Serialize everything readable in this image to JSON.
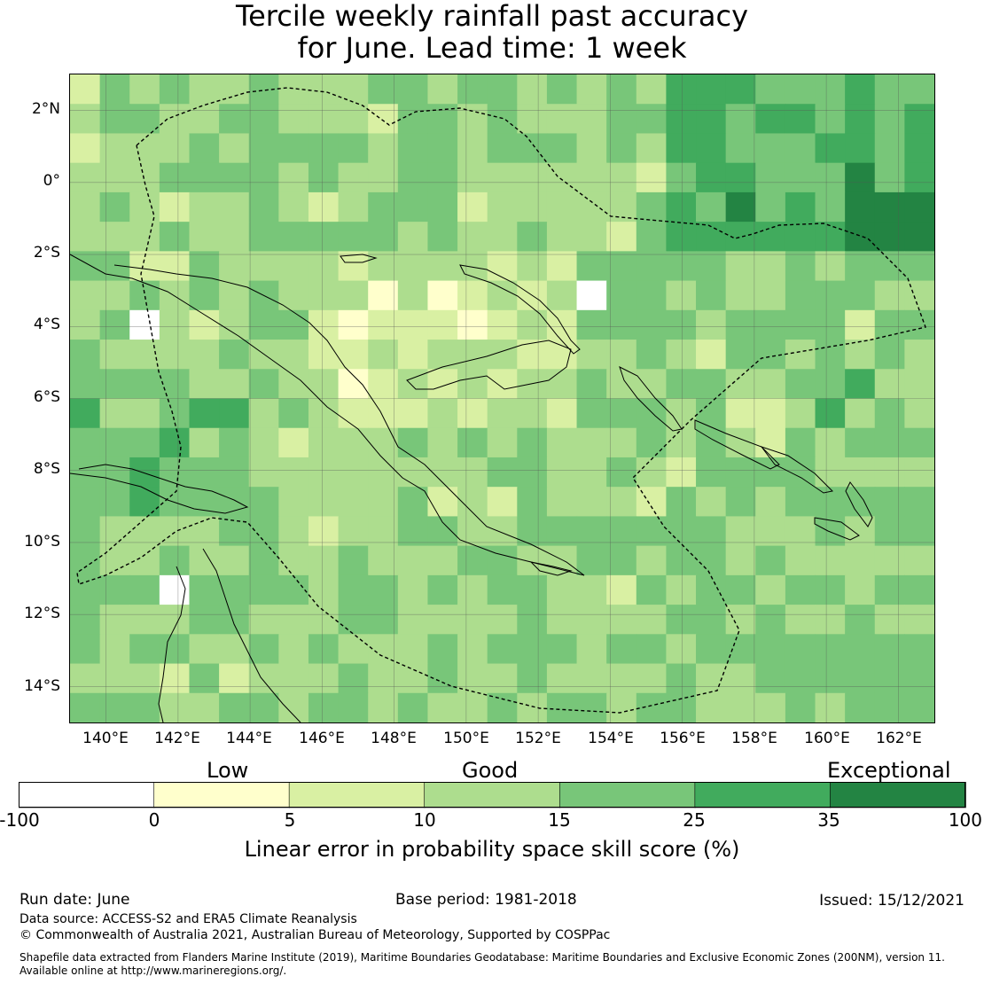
{
  "title_line1": "Tercile weekly rainfall past accuracy",
  "title_line2": "for June. Lead time: 1 week",
  "map": {
    "lon_ticks": [
      "140°E",
      "142°E",
      "144°E",
      "146°E",
      "148°E",
      "150°E",
      "152°E",
      "154°E",
      "156°E",
      "158°E",
      "160°E",
      "162°E"
    ],
    "lat_ticks": [
      "2°N",
      "0°",
      "2°S",
      "4°S",
      "6°S",
      "8°S",
      "10°S",
      "12°S",
      "14°S"
    ],
    "lon_range": [
      139,
      163
    ],
    "lat_range": [
      -15,
      3
    ]
  },
  "colorbar": {
    "category_low": "Low",
    "category_good": "Good",
    "category_exceptional": "Exceptional",
    "ticks": [
      "-100",
      "0",
      "5",
      "10",
      "15",
      "25",
      "35",
      "100"
    ],
    "colors": [
      "#ffffff",
      "#ffffcc",
      "#d9f0a3",
      "#addd8e",
      "#78c679",
      "#41ab5d",
      "#238443"
    ],
    "title": "Linear error in probability space skill score (%)"
  },
  "footer": {
    "run_date": "Run date: June",
    "base_period": "Base period: 1981-2018",
    "issued": "Issued: 15/12/2021",
    "data_source": "Data source: ACCESS-S2 and ERA5 Climate Reanalysis",
    "copyright": "© Commonwealth of Australia 2021, Australian Bureau of Meteorology, Supported by COSPPac",
    "shapefile_line1": "Shapefile data extracted from Flanders Marine Institute (2019), Maritime Boundaries Geodatabase: Maritime Boundaries and Exclusive Economic Zones (200NM), version 11.",
    "shapefile_line2": "Available online at http://www.marineregions.org/."
  }
}
